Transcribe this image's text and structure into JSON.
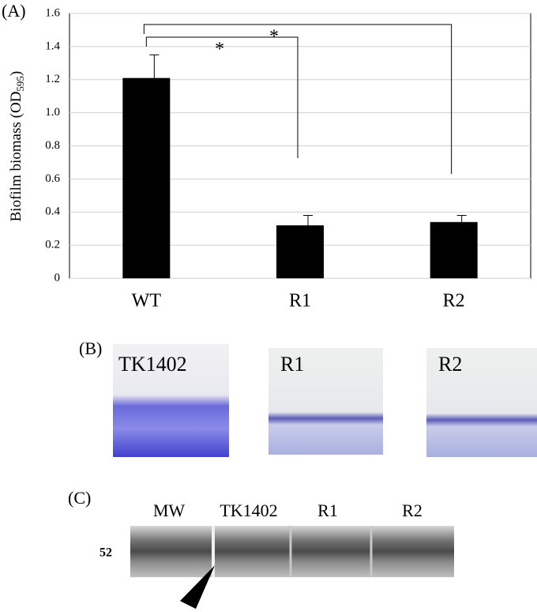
{
  "chart_data": {
    "type": "bar",
    "panel_label": "(A)",
    "y_label": "Biofilm biomass  (OD",
    "y_label_sub": "595",
    "y_label_end": ")",
    "categories": [
      "WT",
      "R1",
      "R2"
    ],
    "values": [
      1.21,
      0.32,
      0.34
    ],
    "errors": [
      0.14,
      0.06,
      0.04
    ],
    "color": "#000000",
    "ylim": [
      0,
      1.6
    ],
    "yticks": [
      0,
      0.2,
      0.4,
      0.6,
      0.8,
      {
        "value": 1,
        "label": "1.0"
      },
      1.2,
      1.4,
      1.6
    ],
    "grid": true,
    "comparisons": [
      {
        "label": "*",
        "groups": [
          "WT",
          "R1"
        ]
      },
      {
        "label": "*",
        "groups": [
          "WT",
          "R2"
        ]
      }
    ]
  },
  "panel_b": {
    "panel_label": "(B)",
    "photos": [
      "TK1402",
      "R1",
      "R2"
    ]
  },
  "panel_c": {
    "panel_label": "(C)",
    "lanes": [
      "MW",
      "TK1402",
      "R1",
      "R2"
    ],
    "marker": "52"
  }
}
